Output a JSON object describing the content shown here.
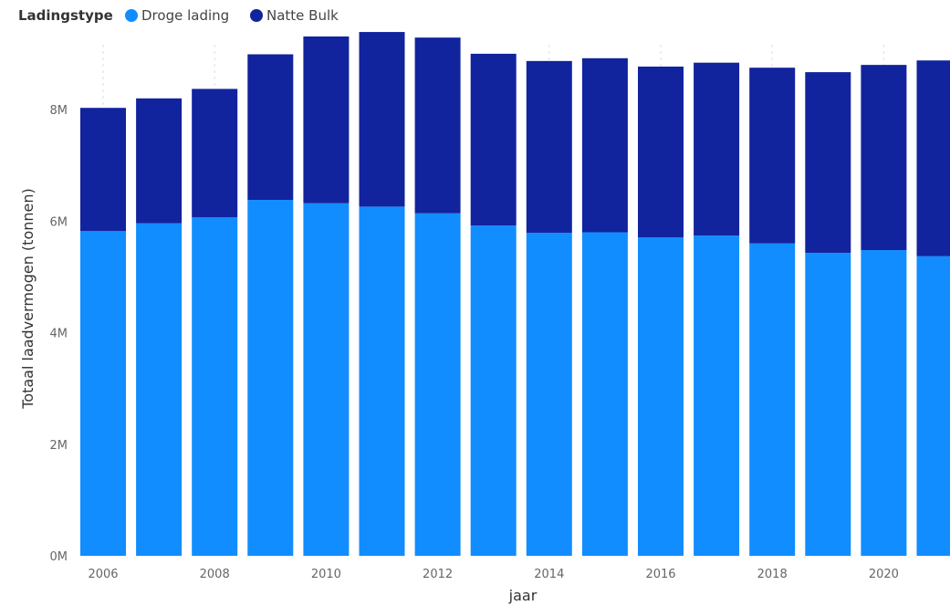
{
  "chart_data": {
    "type": "bar",
    "stacked": true,
    "legend": {
      "title": "Ladingstype",
      "placement": "top-left"
    },
    "xlabel": "jaar",
    "ylabel": "Totaal laadvermogen (tonnen)",
    "ylim": [
      0,
      9800000
    ],
    "yticks": [
      0,
      2000000,
      4000000,
      6000000,
      8000000
    ],
    "ytick_labels": [
      "0M",
      "2M",
      "4M",
      "6M",
      "8M"
    ],
    "xtick_labels": [
      "2006",
      "2008",
      "2010",
      "2012",
      "2014",
      "2016",
      "2018",
      "2020"
    ],
    "categories": [
      "2006",
      "2007",
      "2008",
      "2009",
      "2010",
      "2011",
      "2012",
      "2013",
      "2014",
      "2015",
      "2016",
      "2017",
      "2018",
      "2019",
      "2020",
      "2021"
    ],
    "series": [
      {
        "name": "Droge lading",
        "color": "#118dff",
        "values": [
          5820000,
          5960000,
          6070000,
          6380000,
          6320000,
          6260000,
          6140000,
          5920000,
          5790000,
          5800000,
          5710000,
          5740000,
          5600000,
          5430000,
          5480000,
          5370000
        ]
      },
      {
        "name": "Natte Bulk",
        "color": "#12239e",
        "values": [
          2210000,
          2240000,
          2300000,
          2610000,
          2990000,
          3130000,
          3150000,
          3080000,
          3080000,
          3120000,
          3060000,
          3100000,
          3150000,
          3240000,
          3320000,
          3510000
        ]
      }
    ],
    "grid": true
  }
}
